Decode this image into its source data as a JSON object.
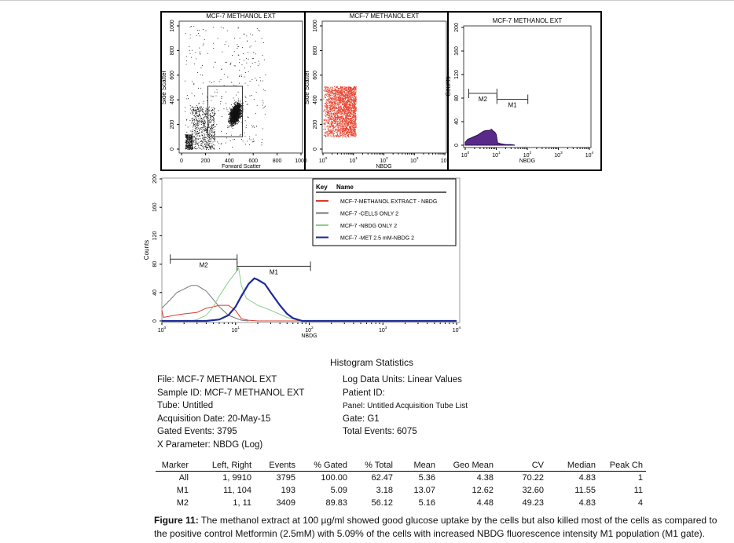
{
  "colors": {
    "events_dark": "#111111",
    "events_red": "#e8412c",
    "hist_fill": "#5a2a8a",
    "methanol": "#d93a2b",
    "cells_only": "#777777",
    "nbdg_only": "#88d088",
    "met": "#1a2a9a"
  },
  "chart_data": [
    {
      "type": "scatter",
      "title": "MCF-7 METHANOL EXT",
      "xlabel": "Forward Scatter",
      "ylabel": "Side Scatter",
      "xlim": [
        0,
        1000
      ],
      "ylim": [
        0,
        1000
      ],
      "xticks": [
        "0",
        "200",
        "400",
        "600",
        "800",
        "1000"
      ],
      "yticks": [
        "0",
        "200",
        "400",
        "600",
        "800",
        "1000"
      ],
      "gate": {
        "x": [
          220,
          510
        ],
        "y": [
          100,
          510
        ]
      },
      "main_population_center": [
        450,
        300
      ]
    },
    {
      "type": "scatter",
      "title": "MCF-7 METHANOL EXT",
      "xlabel": "NBDG",
      "ylabel": "Side Scatter",
      "xscale": "log",
      "xlim": [
        1,
        10000
      ],
      "ylim": [
        0,
        1000
      ],
      "xticks": [
        "10^0",
        "10^1",
        "10^2",
        "10^3",
        "10^4"
      ],
      "yticks": [
        "0",
        "200",
        "400",
        "600",
        "800",
        "1000"
      ],
      "population_range": {
        "x": [
          1,
          12
        ],
        "y": [
          100,
          510
        ]
      }
    },
    {
      "type": "area",
      "title": "MCF-7 METHANOL EXT",
      "xlabel": "NBDG",
      "ylabel": "Counts",
      "xscale": "log",
      "xlim": [
        1,
        10000
      ],
      "ylim": [
        0,
        200
      ],
      "xticks": [
        "10^0",
        "10^1",
        "10^2",
        "10^3",
        "10^4"
      ],
      "yticks": [
        "0",
        "40",
        "80",
        "120",
        "160",
        "200"
      ],
      "series": [
        {
          "x": [
            1,
            1.2,
            1.5,
            2,
            2.5,
            3,
            4,
            5,
            6,
            7,
            8,
            9,
            10,
            11,
            15,
            20,
            30,
            40
          ],
          "y": [
            5,
            10,
            12,
            15,
            17,
            20,
            24,
            25,
            25,
            27,
            24,
            22,
            18,
            4,
            2,
            1,
            1,
            0
          ]
        }
      ],
      "markers": [
        {
          "name": "M2",
          "range": [
            1.3,
            10.5
          ],
          "level": 88
        },
        {
          "name": "M1",
          "range": [
            10.5,
            104
          ],
          "level": 78
        }
      ]
    },
    {
      "type": "line",
      "title": "",
      "xlabel": "NBDG",
      "ylabel": "Counts",
      "xscale": "log",
      "xlim": [
        1,
        10000
      ],
      "ylim": [
        0,
        200
      ],
      "xticks": [
        "10^0",
        "10^1",
        "10^2",
        "10^3",
        "10^4"
      ],
      "yticks": [
        "0",
        "40",
        "80",
        "120",
        "160",
        "200"
      ],
      "legend": {
        "position": "top-right",
        "header": [
          "Key",
          "Name"
        ]
      },
      "series": [
        {
          "name": "MCF-7-METHANOL EXTRACT - NBDG",
          "color": "#d93a2b",
          "x": [
            1,
            1.05,
            1.5,
            2,
            3,
            4,
            5,
            6,
            8,
            10,
            12,
            15,
            20,
            10000
          ],
          "y": [
            15,
            5,
            8,
            10,
            12,
            18,
            20,
            22,
            22,
            15,
            3,
            1,
            0,
            0
          ]
        },
        {
          "name": "MCF-7 -CELLS ONLY 2",
          "color": "#777777",
          "x": [
            1,
            1.3,
            1.6,
            2,
            2.5,
            3,
            4,
            5,
            6,
            8,
            10,
            12,
            15
          ],
          "y": [
            18,
            30,
            40,
            45,
            50,
            50,
            42,
            30,
            20,
            8,
            4,
            1,
            0
          ]
        },
        {
          "name": "MCF-7 -NBDG ONLY 2",
          "color": "#88d088",
          "x": [
            2.5,
            3,
            4,
            5,
            6,
            8,
            10,
            11,
            12,
            14,
            20,
            30,
            50,
            70,
            80
          ],
          "y": [
            0,
            2,
            8,
            20,
            35,
            55,
            68,
            75,
            50,
            32,
            22,
            15,
            5,
            1,
            0
          ]
        },
        {
          "name": "MCF-7 -MET 2.5 mM-NBDG 2",
          "color": "#1a2a9a",
          "x": [
            1,
            4,
            6,
            8,
            10,
            12,
            15,
            18,
            20,
            25,
            30,
            40,
            50,
            60,
            80,
            10000
          ],
          "y": [
            0,
            0,
            2,
            8,
            20,
            35,
            52,
            60,
            58,
            52,
            40,
            22,
            10,
            4,
            0,
            0
          ]
        }
      ],
      "markers": [
        {
          "name": "M2",
          "range": [
            1.3,
            10.5
          ],
          "level": 87
        },
        {
          "name": "M1",
          "range": [
            10.5,
            104
          ],
          "level": 77
        }
      ]
    }
  ],
  "stats": {
    "title": "Histogram Statistics",
    "left": [
      "File: MCF-7  METHANOL EXT",
      "Sample ID: MCF-7  METHANOL EXT",
      "Tube: Untitled",
      "Acquisition Date: 20-May-15",
      "Gated Events: 3795",
      "X Parameter: NBDG (Log)"
    ],
    "right": [
      "Log Data Units: Linear Values",
      "Patient ID:",
      "Panel: Untitled Acquisition Tube List",
      "Gate: G1",
      "Total Events: 6075"
    ],
    "headers": [
      "Marker",
      "Left, Right",
      "Events",
      "% Gated",
      "% Total",
      "Mean",
      "Geo Mean",
      "CV",
      "Median",
      "Peak Ch"
    ],
    "rows": [
      [
        "All",
        "1,  9910",
        "3795",
        "100.00",
        "62.47",
        "5.36",
        "4.38",
        "70.22",
        "4.83",
        "1"
      ],
      [
        "M1",
        "11,   104",
        "193",
        "5.09",
        "3.18",
        "13.07",
        "12.62",
        "32.60",
        "11.55",
        "11"
      ],
      [
        "M2",
        "1,    11",
        "3409",
        "89.83",
        "56.12",
        "5.16",
        "4.48",
        "49.23",
        "4.83",
        "4"
      ]
    ]
  },
  "caption": {
    "label": "Figure 11:",
    "text": " The methanol extract at 100 µg/ml showed good glucose uptake by the cells but also killed most of the cells as compared to the positive control Metformin (2.5mM) with 5.09% of the cells with increased NBDG fluorescence intensity M1 population (M1 gate)."
  }
}
